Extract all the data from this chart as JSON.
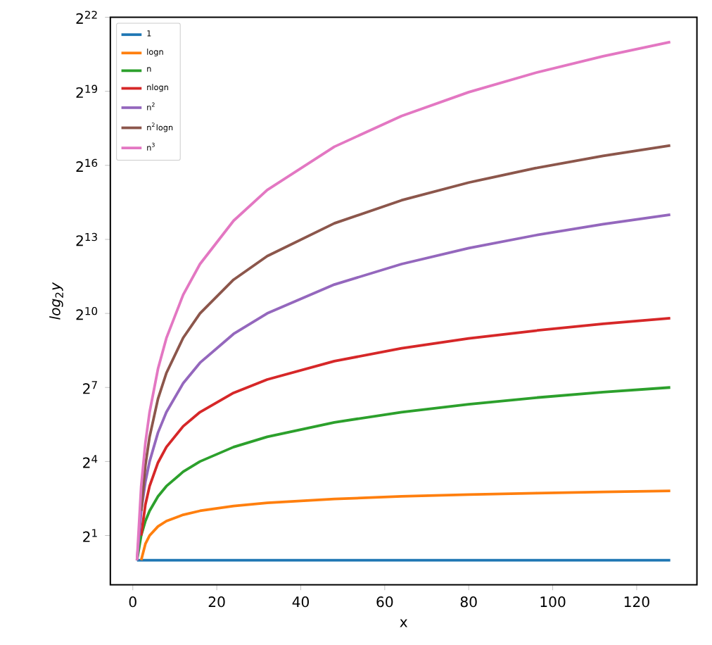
{
  "chart_data": {
    "type": "line",
    "xlabel": "x",
    "ylabel": "*log*$_{2}$*y*",
    "log": "y",
    "legend": "top left",
    "grid": false,
    "x": [
      1,
      2,
      3,
      4,
      6,
      8,
      12,
      16,
      24,
      32,
      48,
      64,
      80,
      96,
      112,
      128
    ],
    "xlim": [
      -5.35,
      134.35
    ],
    "xticks": [
      0,
      20,
      40,
      60,
      80,
      100,
      120
    ],
    "ylim": [
      0.5,
      4194304
    ],
    "yticks": [
      {
        "value": 2,
        "label": "2$^{1}$"
      },
      {
        "value": 16,
        "label": "2$^{4}$"
      },
      {
        "value": 128,
        "label": "2$^{7}$"
      },
      {
        "value": 1024,
        "label": "2$^{10}$"
      },
      {
        "value": 8192,
        "label": "2$^{13}$"
      },
      {
        "value": 65536,
        "label": "2$^{16}$"
      },
      {
        "value": 524288,
        "label": "2$^{19}$"
      },
      {
        "value": 4194304,
        "label": "2$^{22}$"
      }
    ],
    "series": [
      {
        "name": "1",
        "color": "#1f77b4",
        "values": [
          1,
          1,
          1,
          1,
          1,
          1,
          1,
          1,
          1,
          1,
          1,
          1,
          1,
          1,
          1,
          1
        ]
      },
      {
        "name": "logn",
        "color": "#ff7f0e",
        "values": [
          null,
          1,
          1.58,
          2,
          2.58,
          3,
          3.58,
          4,
          4.58,
          5,
          5.58,
          6,
          6.32,
          6.58,
          6.81,
          7
        ]
      },
      {
        "name": "n",
        "color": "#2ca02c",
        "values": [
          1,
          2,
          3,
          4,
          6,
          8,
          12,
          16,
          24,
          32,
          48,
          64,
          80,
          96,
          112,
          128
        ]
      },
      {
        "name": "nlogn",
        "color": "#d62728",
        "values": [
          null,
          2,
          4.75,
          8,
          15.5,
          24,
          43,
          64,
          110,
          160,
          268,
          384,
          506,
          632,
          763,
          896
        ]
      },
      {
        "name": "n$^{2}$",
        "color": "#9467bd",
        "values": [
          1,
          4,
          9,
          16,
          36,
          64,
          144,
          256,
          576,
          1024,
          2304,
          4096,
          6400,
          9216,
          12544,
          16384
        ]
      },
      {
        "name": "n$^{2}$logn",
        "color": "#8c564b",
        "values": [
          null,
          4,
          14.3,
          32,
          93,
          192,
          516,
          1024,
          2641,
          5120,
          12867,
          24576,
          40448,
          60674,
          85372,
          114688
        ]
      },
      {
        "name": "n$^{3}$",
        "color": "#e377c2",
        "values": [
          1,
          8,
          27,
          64,
          216,
          512,
          1728,
          4096,
          13824,
          32768,
          110592,
          262144,
          512000,
          884736,
          1404928,
          2097152
        ]
      }
    ]
  }
}
